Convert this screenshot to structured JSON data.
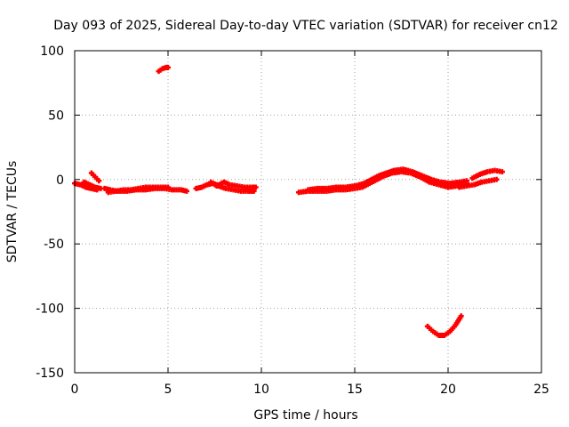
{
  "chart_data": {
    "type": "scatter",
    "title": "Day 093 of 2025, Sidereal Day-to-day VTEC variation (SDTVAR) for receiver cn12",
    "xlabel": "GPS time / hours",
    "ylabel": "SDTVAR / TECUs",
    "xlim": [
      0,
      25
    ],
    "ylim": [
      -150,
      100
    ],
    "xticks": [
      0,
      5,
      10,
      15,
      20,
      25
    ],
    "yticks": [
      100,
      50,
      0,
      -50,
      -100,
      -150
    ],
    "grid": true,
    "marker": "plus",
    "series": [
      {
        "name": "SDTVAR",
        "color": "#ff0000",
        "tracks": [
          [
            [
              0.0,
              -3
            ],
            [
              0.3,
              -4
            ],
            [
              0.6,
              -6
            ],
            [
              0.9,
              -7
            ],
            [
              1.2,
              -8
            ]
          ],
          [
            [
              0.9,
              5
            ],
            [
              1.1,
              2
            ],
            [
              1.3,
              -1
            ]
          ],
          [
            [
              0.5,
              -2
            ],
            [
              0.8,
              -4
            ],
            [
              1.1,
              -6
            ],
            [
              1.4,
              -7
            ]
          ],
          [
            [
              1.6,
              -7
            ],
            [
              1.9,
              -8
            ],
            [
              2.3,
              -9
            ],
            [
              2.8,
              -9
            ],
            [
              3.3,
              -8
            ],
            [
              3.8,
              -8
            ],
            [
              4.3,
              -7
            ],
            [
              4.8,
              -7
            ],
            [
              5.2,
              -8
            ],
            [
              5.7,
              -8
            ],
            [
              6.0,
              -9
            ]
          ],
          [
            [
              1.8,
              -10
            ],
            [
              2.2,
              -9
            ],
            [
              2.6,
              -8
            ],
            [
              3.0,
              -8
            ],
            [
              3.4,
              -7
            ],
            [
              3.8,
              -6
            ],
            [
              4.2,
              -6
            ],
            [
              4.6,
              -6
            ],
            [
              5.0,
              -6
            ]
          ],
          [
            [
              4.5,
              84
            ],
            [
              4.7,
              86
            ],
            [
              4.9,
              87
            ],
            [
              5.0,
              87
            ]
          ],
          [
            [
              6.5,
              -7
            ],
            [
              6.8,
              -6
            ],
            [
              7.1,
              -4
            ],
            [
              7.4,
              -3
            ],
            [
              7.6,
              -4
            ]
          ],
          [
            [
              7.3,
              -2
            ],
            [
              7.6,
              -5
            ],
            [
              8.0,
              -2
            ],
            [
              8.3,
              -4
            ],
            [
              8.7,
              -5
            ],
            [
              9.1,
              -6
            ],
            [
              9.5,
              -6
            ],
            [
              9.7,
              -6
            ]
          ],
          [
            [
              7.7,
              -5
            ],
            [
              8.1,
              -7
            ],
            [
              8.5,
              -8
            ],
            [
              8.9,
              -9
            ],
            [
              9.3,
              -9
            ],
            [
              9.6,
              -9
            ]
          ],
          [
            [
              12.0,
              -10
            ],
            [
              12.5,
              -9
            ],
            [
              13.0,
              -9
            ],
            [
              13.5,
              -9
            ],
            [
              14.0,
              -8
            ],
            [
              14.5,
              -8
            ],
            [
              15.0,
              -7
            ],
            [
              15.4,
              -6
            ],
            [
              15.8,
              -3
            ],
            [
              16.2,
              0
            ],
            [
              16.6,
              3
            ],
            [
              17.0,
              5
            ],
            [
              17.5,
              6
            ],
            [
              18.0,
              5
            ],
            [
              18.5,
              2
            ],
            [
              19.0,
              -2
            ],
            [
              19.5,
              -4
            ],
            [
              20.0,
              -6
            ],
            [
              20.5,
              -5
            ],
            [
              21.0,
              -3
            ]
          ],
          [
            [
              12.5,
              -8
            ],
            [
              13.0,
              -7
            ],
            [
              13.5,
              -7
            ],
            [
              14.0,
              -6
            ],
            [
              14.5,
              -6
            ],
            [
              15.0,
              -5
            ],
            [
              15.5,
              -3
            ],
            [
              15.9,
              0
            ],
            [
              16.3,
              3
            ],
            [
              16.7,
              5
            ],
            [
              17.1,
              7
            ],
            [
              17.6,
              8
            ],
            [
              18.1,
              6
            ],
            [
              18.6,
              3
            ],
            [
              19.1,
              0
            ],
            [
              19.6,
              -2
            ],
            [
              20.1,
              -3
            ],
            [
              20.6,
              -2
            ],
            [
              21.0,
              -1
            ]
          ],
          [
            [
              20.6,
              -6
            ],
            [
              21.0,
              -5
            ],
            [
              21.4,
              -4
            ],
            [
              21.8,
              -2
            ],
            [
              22.2,
              -1
            ],
            [
              22.6,
              0
            ]
          ],
          [
            [
              21.3,
              1
            ],
            [
              21.7,
              4
            ],
            [
              22.1,
              6
            ],
            [
              22.5,
              7
            ],
            [
              22.9,
              6
            ]
          ],
          [
            [
              18.9,
              -114
            ],
            [
              19.2,
              -118
            ],
            [
              19.5,
              -121
            ],
            [
              19.8,
              -121
            ],
            [
              20.1,
              -118
            ],
            [
              20.4,
              -113
            ],
            [
              20.7,
              -106
            ]
          ]
        ]
      }
    ]
  }
}
